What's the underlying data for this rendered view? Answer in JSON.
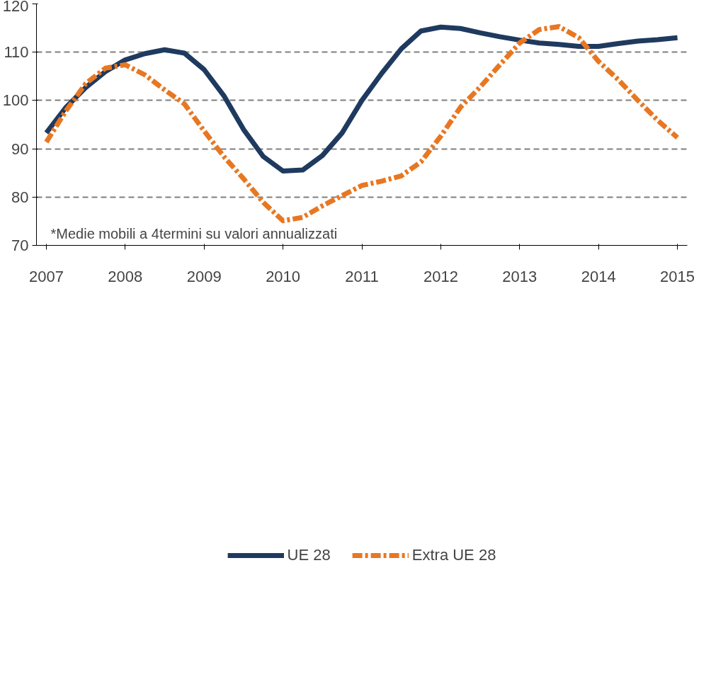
{
  "chart_data": {
    "type": "line",
    "categories": [
      "2007",
      null,
      null,
      null,
      "2008",
      null,
      null,
      null,
      "2009",
      null,
      null,
      null,
      "2010",
      null,
      null,
      null,
      "2011",
      null,
      null,
      null,
      "2012",
      null,
      null,
      null,
      "2013",
      null,
      null,
      null,
      "2014",
      null,
      null,
      null,
      "2015"
    ],
    "series": [
      {
        "name": "UE 28",
        "color": "#1f3a5f",
        "line_style": "solid",
        "values": [
          93.3,
          98.6,
          102.7,
          106.0,
          108.4,
          109.7,
          110.5,
          109.8,
          106.4,
          101.0,
          94.0,
          88.4,
          85.4,
          85.6,
          88.6,
          93.3,
          100.0,
          105.6,
          110.7,
          114.4,
          115.2,
          114.9,
          114.0,
          113.2,
          112.5,
          111.9,
          111.6,
          111.2,
          111.2,
          111.8,
          112.3,
          112.6,
          113.0
        ]
      },
      {
        "name": "Extra UE 28",
        "color": "#e87722",
        "line_style": "dashed",
        "values": [
          91.4,
          97.9,
          103.5,
          106.7,
          107.4,
          105.3,
          102.2,
          99.3,
          93.7,
          88.4,
          83.8,
          78.9,
          75.1,
          75.8,
          78.2,
          80.3,
          82.4,
          83.3,
          84.4,
          87.3,
          92.6,
          98.6,
          102.8,
          107.4,
          111.9,
          114.7,
          115.3,
          113.0,
          108.1,
          104.3,
          100.0,
          95.9,
          92.3
        ]
      }
    ],
    "ylim": [
      70,
      120
    ],
    "yticks": [
      70,
      80,
      90,
      100,
      110,
      120
    ],
    "grid": "y",
    "legend": "bottom",
    "annotations": [
      "*Medie mobili a 4termini su valori annualizzati"
    ]
  }
}
